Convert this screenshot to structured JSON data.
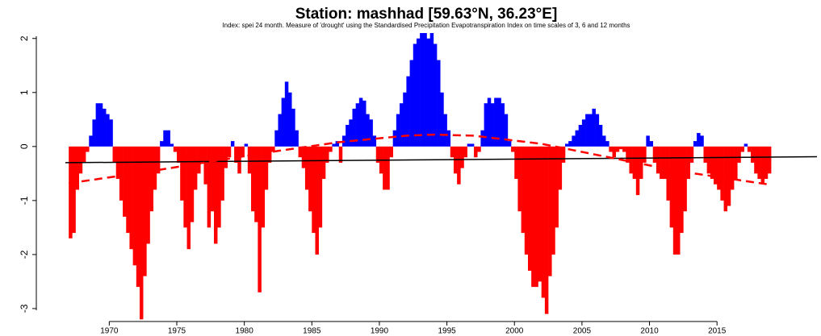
{
  "chart_data": {
    "type": "bar",
    "title": "Station: mashhad [59.63°N, 36.23°E]",
    "subtitle": "Index: spei 24 month. Measure of 'drought' using the Standardised Precipitation Evapotranspiration Index on time scales of 3, 6 and 12 months",
    "positive_color": "#0000ff",
    "negative_color": "#ff0000",
    "x": [
      1967,
      1967.25,
      1967.5,
      1967.75,
      1968,
      1968.25,
      1968.5,
      1968.75,
      1969,
      1969.25,
      1969.5,
      1969.75,
      1970,
      1970.25,
      1970.5,
      1970.75,
      1971,
      1971.25,
      1971.5,
      1971.75,
      1972,
      1972.25,
      1972.5,
      1972.75,
      1973,
      1973.25,
      1973.5,
      1973.75,
      1974,
      1974.25,
      1974.5,
      1974.75,
      1975,
      1975.25,
      1975.5,
      1975.75,
      1976,
      1976.25,
      1976.5,
      1976.75,
      1977,
      1977.25,
      1977.5,
      1977.75,
      1978,
      1978.25,
      1978.5,
      1978.75,
      1979,
      1979.25,
      1979.5,
      1979.75,
      1980,
      1980.25,
      1980.5,
      1980.75,
      1981,
      1981.25,
      1981.5,
      1981.75,
      1982,
      1982.25,
      1982.5,
      1982.75,
      1983,
      1983.25,
      1983.5,
      1983.75,
      1984,
      1984.25,
      1984.5,
      1984.75,
      1985,
      1985.25,
      1985.5,
      1985.75,
      1986,
      1986.25,
      1986.5,
      1986.75,
      1987,
      1987.25,
      1987.5,
      1987.75,
      1988,
      1988.25,
      1988.5,
      1988.75,
      1989,
      1989.25,
      1989.5,
      1989.75,
      1990,
      1990.25,
      1990.5,
      1990.75,
      1991,
      1991.25,
      1991.5,
      1991.75,
      1992,
      1992.25,
      1992.5,
      1992.75,
      1993,
      1993.25,
      1993.5,
      1993.75,
      1994,
      1994.25,
      1994.5,
      1994.75,
      1995,
      1995.25,
      1995.5,
      1995.75,
      1996,
      1996.25,
      1996.5,
      1996.75,
      1997,
      1997.25,
      1997.5,
      1997.75,
      1998,
      1998.25,
      1998.5,
      1998.75,
      1999,
      1999.25,
      1999.5,
      1999.75,
      2000,
      2000.25,
      2000.5,
      2000.75,
      2001,
      2001.25,
      2001.5,
      2001.75,
      2002,
      2002.25,
      2002.5,
      2002.75,
      2003,
      2003.25,
      2003.5,
      2003.75,
      2004,
      2004.25,
      2004.5,
      2004.75,
      2005,
      2005.25,
      2005.5,
      2005.75,
      2006,
      2006.25,
      2006.5,
      2006.75,
      2007,
      2007.25,
      2007.5,
      2007.75,
      2008,
      2008.25,
      2008.5,
      2008.75,
      2009,
      2009.25,
      2009.5,
      2009.75,
      2010,
      2010.25,
      2010.5,
      2010.75,
      2011,
      2011.25,
      2011.5,
      2011.75,
      2012,
      2012.25,
      2012.5,
      2012.75,
      2013,
      2013.25,
      2013.5,
      2013.75,
      2014,
      2014.25,
      2014.5,
      2014.75,
      2015,
      2015.25,
      2015.5,
      2015.75,
      2016,
      2016.25,
      2016.5,
      2016.75,
      2017,
      2017.25,
      2017.5,
      2017.75,
      2018,
      2018.25,
      2018.5,
      2018.75
    ],
    "values": [
      -1.7,
      -1.6,
      -0.8,
      -0.5,
      -0.3,
      -0.1,
      0.2,
      0.5,
      0.8,
      0.8,
      0.7,
      0.6,
      0.5,
      -0.3,
      -0.6,
      -1.0,
      -1.3,
      -1.6,
      -1.9,
      -2.2,
      -2.6,
      -3.2,
      -2.4,
      -1.8,
      -1.2,
      -0.8,
      -0.5,
      0.1,
      0.3,
      0.3,
      0.05,
      -0.1,
      -0.3,
      -1.0,
      -1.5,
      -1.9,
      -1.4,
      -0.8,
      -0.5,
      -0.3,
      -0.7,
      -1.5,
      -1.2,
      -1.8,
      -1.5,
      -1.0,
      -0.4,
      -0.2,
      0.1,
      -0.3,
      -0.5,
      -0.2,
      0.05,
      -0.5,
      -1.2,
      -1.4,
      -2.7,
      -1.5,
      -0.8,
      -0.3,
      -0.1,
      0.3,
      0.6,
      0.9,
      1.2,
      1.0,
      0.7,
      0.3,
      -0.2,
      -0.4,
      -0.8,
      -1.2,
      -1.6,
      -2.0,
      -1.5,
      -0.6,
      -0.3,
      -0.1,
      0.05,
      0.1,
      -0.3,
      0.2,
      0.4,
      0.5,
      0.7,
      0.8,
      0.9,
      0.85,
      0.6,
      0.5,
      0.2,
      -0.3,
      -0.5,
      -0.8,
      -0.8,
      -0.2,
      0.3,
      0.6,
      0.8,
      1.0,
      1.3,
      1.6,
      1.9,
      2.0,
      2.1,
      2.1,
      2.0,
      2.1,
      1.9,
      1.6,
      1.0,
      0.6,
      0.3,
      -0.2,
      -0.5,
      -0.7,
      -0.4,
      -0.2,
      0.05,
      0.05,
      -0.2,
      -0.1,
      0.3,
      0.8,
      0.9,
      0.8,
      0.9,
      0.9,
      0.8,
      0.6,
      0.1,
      -0.1,
      -0.6,
      -1.2,
      -1.6,
      -2.0,
      -2.3,
      -2.6,
      -2.6,
      -2.5,
      -2.8,
      -3.1,
      -2.4,
      -2.0,
      -1.5,
      -0.8,
      -0.3,
      0.05,
      0.1,
      0.2,
      0.3,
      0.4,
      0.5,
      0.6,
      0.6,
      0.7,
      0.6,
      0.4,
      0.2,
      0.1,
      -0.1,
      -0.2,
      -0.1,
      -0.05,
      -0.1,
      -0.3,
      -0.5,
      -0.6,
      -0.9,
      -0.6,
      -0.3,
      0.2,
      0.1,
      -0.3,
      -0.5,
      -0.6,
      -0.6,
      -1.0,
      -1.5,
      -2.0,
      -2.0,
      -1.6,
      -1.2,
      -0.6,
      -0.3,
      0.1,
      0.25,
      0.2,
      -0.3,
      -0.5,
      -0.6,
      -0.7,
      -0.8,
      -1.0,
      -1.2,
      -1.1,
      -0.8,
      -0.6,
      -0.3,
      -0.1,
      0.05,
      -0.1,
      -0.3,
      -0.5,
      -0.6,
      -0.7,
      -0.6,
      -0.5
    ],
    "trend": {
      "color": "#000000",
      "x": [
        1966.75,
        2022.4
      ],
      "values": [
        -0.3,
        -0.19
      ]
    },
    "smooth": {
      "color": "#ff0000",
      "x": [
        1967,
        1972,
        1977,
        1982,
        1987,
        1992,
        1994,
        1997,
        2002,
        2007,
        2012,
        2018.75
      ],
      "values": [
        -0.68,
        -0.5,
        -0.3,
        -0.1,
        0.08,
        0.2,
        0.22,
        0.2,
        0.05,
        -0.2,
        -0.45,
        -0.7
      ]
    },
    "xlim": [
      1964.6,
      2022.4
    ],
    "ylim": [
      -3.18,
      2.19
    ],
    "xticks": [
      1970,
      1975,
      1980,
      1985,
      1990,
      1995,
      2000,
      2005,
      2010,
      2015
    ],
    "yticks": [
      -3,
      -2,
      -1,
      0,
      1,
      2
    ]
  }
}
